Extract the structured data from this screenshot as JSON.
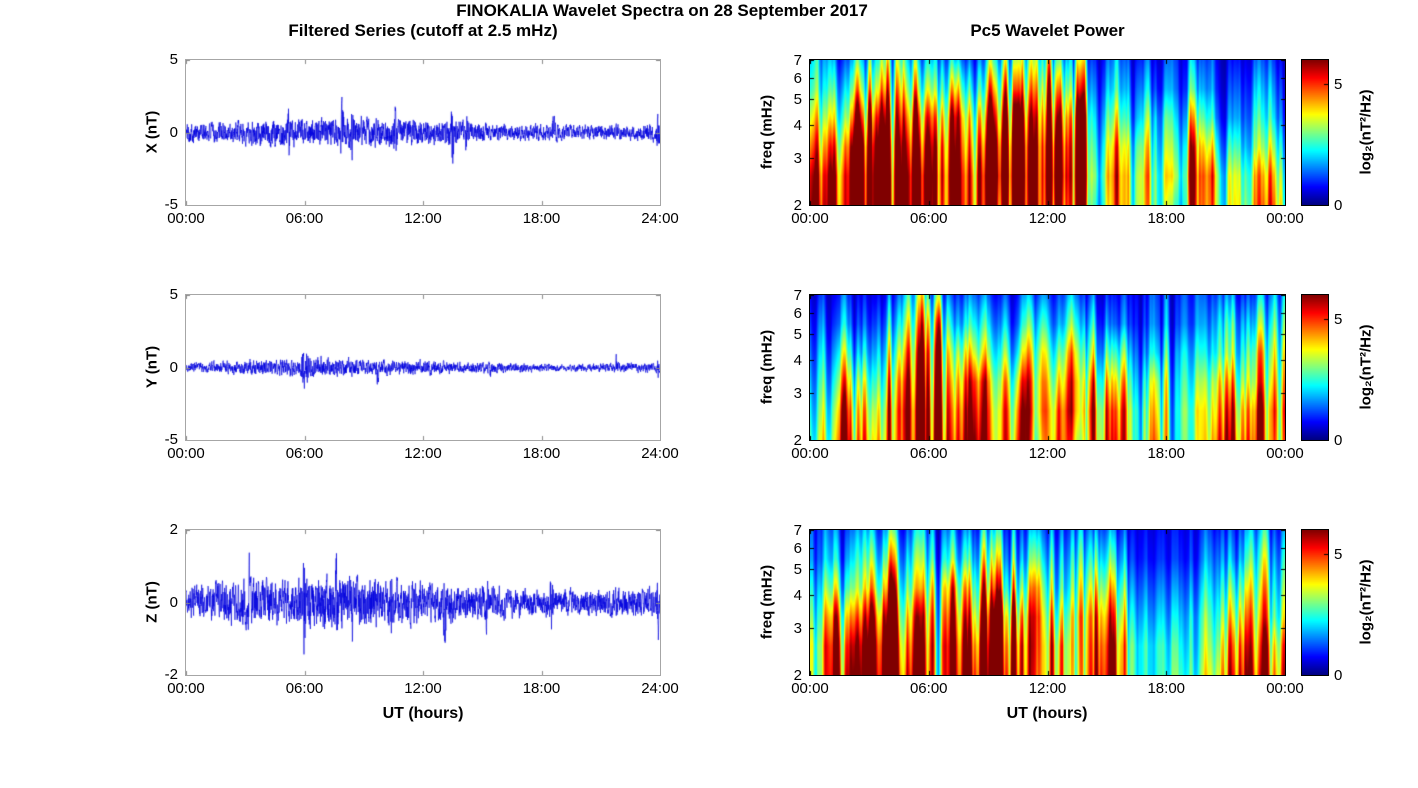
{
  "figure": {
    "title": "FINOKALIA Wavelet Spectra on 28 September 2017",
    "left_column_title": "Filtered Series (cutoff at 2.5 mHz)",
    "right_column_title": "Pc5 Wavelet Power",
    "x_axis_label": "UT (hours)",
    "background": "#ffffff",
    "trace_color": "#0000dd",
    "colormap": "jet"
  },
  "chart_data": [
    {
      "type": "line",
      "component": "X",
      "ylabel": "X (nT)",
      "ylim": [
        -5,
        5
      ],
      "yticks": [
        5,
        0,
        -5
      ],
      "ytick_labels": [
        "5",
        "0",
        "-5"
      ],
      "x_range_hours": [
        0,
        24
      ],
      "x_tick_hours": [
        0,
        6,
        12,
        18,
        24
      ],
      "x_tick_labels": [
        "00:00",
        "06:00",
        "12:00",
        "18:00",
        "24:00"
      ],
      "noise_std_per_hour": [
        0.35,
        0.38,
        0.42,
        0.45,
        0.5,
        0.5,
        0.48,
        0.55,
        0.55,
        0.5,
        0.5,
        0.48,
        0.45,
        0.5,
        0.38,
        0.3,
        0.28,
        0.3,
        0.3,
        0.27,
        0.25,
        0.25,
        0.27,
        0.3
      ],
      "bursts": [
        [
          5.2,
          0.9
        ],
        [
          7.9,
          1.6
        ],
        [
          8.4,
          1.1
        ],
        [
          10.6,
          0.9
        ],
        [
          13.5,
          1.6
        ],
        [
          14.2,
          0.8
        ],
        [
          18.6,
          0.9
        ],
        [
          23.9,
          1.2
        ]
      ],
      "seed": 101
    },
    {
      "type": "line",
      "component": "Y",
      "ylabel": "Y (nT)",
      "ylim": [
        -5,
        5
      ],
      "yticks": [
        5,
        0,
        -5
      ],
      "ytick_labels": [
        "5",
        "0",
        "-5"
      ],
      "x_range_hours": [
        0,
        24
      ],
      "x_tick_hours": [
        0,
        6,
        12,
        18,
        24
      ],
      "x_tick_labels": [
        "00:00",
        "06:00",
        "12:00",
        "18:00",
        "24:00"
      ],
      "noise_std_per_hour": [
        0.18,
        0.2,
        0.24,
        0.25,
        0.28,
        0.3,
        0.38,
        0.3,
        0.3,
        0.28,
        0.25,
        0.25,
        0.24,
        0.2,
        0.2,
        0.2,
        0.16,
        0.15,
        0.14,
        0.14,
        0.14,
        0.16,
        0.18,
        0.15
      ],
      "bursts": [
        [
          5.95,
          1.1
        ],
        [
          6.15,
          0.9
        ],
        [
          9.7,
          0.6
        ],
        [
          15.4,
          0.5
        ],
        [
          21.8,
          0.45
        ],
        [
          23.9,
          0.4
        ]
      ],
      "seed": 202
    },
    {
      "type": "line",
      "component": "Z",
      "ylabel": "Z (nT)",
      "ylim": [
        -2,
        2
      ],
      "yticks": [
        2,
        0,
        -2
      ],
      "ytick_labels": [
        "2",
        "0",
        "-2"
      ],
      "x_range_hours": [
        0,
        24
      ],
      "x_tick_hours": [
        0,
        6,
        12,
        18,
        24
      ],
      "x_tick_labels": [
        "00:00",
        "06:00",
        "12:00",
        "18:00",
        "24:00"
      ],
      "noise_std_per_hour": [
        0.22,
        0.28,
        0.32,
        0.34,
        0.3,
        0.33,
        0.36,
        0.4,
        0.36,
        0.34,
        0.3,
        0.3,
        0.26,
        0.26,
        0.22,
        0.24,
        0.2,
        0.2,
        0.2,
        0.18,
        0.18,
        0.2,
        0.2,
        0.22
      ],
      "bursts": [
        [
          3.2,
          0.5
        ],
        [
          6.0,
          0.9
        ],
        [
          7.6,
          0.65
        ],
        [
          8.4,
          0.55
        ],
        [
          10.4,
          0.5
        ],
        [
          13.1,
          0.6
        ],
        [
          15.2,
          0.45
        ],
        [
          18.5,
          0.65
        ],
        [
          23.9,
          0.5
        ]
      ],
      "seed": 303
    },
    {
      "type": "heatmap",
      "component": "X",
      "ylabel": "freq (mHz)",
      "yscale": "log",
      "freq_range_mhz": [
        2,
        7
      ],
      "yticks": [
        7,
        6,
        5,
        4,
        3,
        2
      ],
      "ytick_labels": [
        "7",
        "6",
        "5",
        "4",
        "3",
        "2"
      ],
      "x_range_hours": [
        0,
        24
      ],
      "x_tick_hours": [
        0,
        6,
        12,
        18,
        24
      ],
      "x_tick_labels": [
        "00:00",
        "06:00",
        "12:00",
        "18:00",
        "00:00"
      ],
      "clim": [
        0,
        6
      ],
      "colorbar_ticks": [
        5,
        0
      ],
      "colorbar_tick_labels": [
        "5",
        "0"
      ],
      "colorbar_label": "log₂(nT²/Hz)",
      "freq_bands_mhz": [
        2.0,
        2.6,
        3.3,
        4.2,
        5.4,
        7.0
      ],
      "power_grid_hourly": [
        [
          5.8,
          5.5,
          4.5,
          3.5,
          2.5,
          2.0
        ],
        [
          6.0,
          6.0,
          5.0,
          3.5,
          2.5,
          1.5
        ],
        [
          6.0,
          6.0,
          5.5,
          4.0,
          2.5,
          1.5
        ],
        [
          6.0,
          6.0,
          5.5,
          4.5,
          3.0,
          2.0
        ],
        [
          6.0,
          6.0,
          5.5,
          4.5,
          3.5,
          2.5
        ],
        [
          6.0,
          6.0,
          5.0,
          4.0,
          2.5,
          1.5
        ],
        [
          5.5,
          5.8,
          5.5,
          4.5,
          3.0,
          2.0
        ],
        [
          5.5,
          5.5,
          5.0,
          4.5,
          3.0,
          1.5
        ],
        [
          5.8,
          5.8,
          5.0,
          4.0,
          2.5,
          1.5
        ],
        [
          4.5,
          5.0,
          4.5,
          3.5,
          2.5,
          1.5
        ],
        [
          5.5,
          5.8,
          5.5,
          4.5,
          3.0,
          2.0
        ],
        [
          5.5,
          5.5,
          5.5,
          5.0,
          4.0,
          3.0
        ],
        [
          4.5,
          5.0,
          4.5,
          3.5,
          2.5,
          1.5
        ],
        [
          5.0,
          5.2,
          5.0,
          4.5,
          3.0,
          2.0
        ],
        [
          2.5,
          3.0,
          2.5,
          2.0,
          1.5,
          1.0
        ],
        [
          4.5,
          4.5,
          4.0,
          3.0,
          2.0,
          1.5
        ],
        [
          3.5,
          3.5,
          3.0,
          2.0,
          1.5,
          1.0
        ],
        [
          3.5,
          3.5,
          3.0,
          2.5,
          1.5,
          1.0
        ],
        [
          2.0,
          2.5,
          2.0,
          1.5,
          1.0,
          0.8
        ],
        [
          4.0,
          4.0,
          3.5,
          2.5,
          1.5,
          1.0
        ],
        [
          3.5,
          3.5,
          2.5,
          1.5,
          1.0,
          0.8
        ],
        [
          4.2,
          4.0,
          3.0,
          2.0,
          1.5,
          1.0
        ],
        [
          3.8,
          3.5,
          2.5,
          2.0,
          1.5,
          1.0
        ],
        [
          4.5,
          4.0,
          3.0,
          2.0,
          1.5,
          1.0
        ]
      ],
      "seed": 11
    },
    {
      "type": "heatmap",
      "component": "Y",
      "ylabel": "freq (mHz)",
      "yscale": "log",
      "freq_range_mhz": [
        2,
        7
      ],
      "yticks": [
        7,
        6,
        5,
        4,
        3,
        2
      ],
      "ytick_labels": [
        "7",
        "6",
        "5",
        "4",
        "3",
        "2"
      ],
      "x_range_hours": [
        0,
        24
      ],
      "x_tick_hours": [
        0,
        6,
        12,
        18,
        24
      ],
      "x_tick_labels": [
        "00:00",
        "06:00",
        "12:00",
        "18:00",
        "00:00"
      ],
      "clim": [
        0,
        6
      ],
      "colorbar_ticks": [
        5,
        0
      ],
      "colorbar_tick_labels": [
        "5",
        "0"
      ],
      "colorbar_label": "log₂(nT²/Hz)",
      "freq_bands_mhz": [
        2.0,
        2.6,
        3.3,
        4.2,
        5.4,
        7.0
      ],
      "power_grid_hourly": [
        [
          3.5,
          3.0,
          2.5,
          2.0,
          1.5,
          1.0
        ],
        [
          5.0,
          4.5,
          3.5,
          2.5,
          1.5,
          1.0
        ],
        [
          5.5,
          5.0,
          4.0,
          2.5,
          1.5,
          1.0
        ],
        [
          5.5,
          5.0,
          4.0,
          3.0,
          2.0,
          1.2
        ],
        [
          4.5,
          4.5,
          4.0,
          3.0,
          2.0,
          1.2
        ],
        [
          5.5,
          5.5,
          5.0,
          4.5,
          3.5,
          2.5
        ],
        [
          5.8,
          5.5,
          5.0,
          4.5,
          3.5,
          2.0
        ],
        [
          5.5,
          5.2,
          4.5,
          3.5,
          2.0,
          1.2
        ],
        [
          5.5,
          5.0,
          4.5,
          3.0,
          2.0,
          1.2
        ],
        [
          4.5,
          4.5,
          4.0,
          3.0,
          2.0,
          1.2
        ],
        [
          5.5,
          5.0,
          4.0,
          2.5,
          1.5,
          1.0
        ],
        [
          3.5,
          4.0,
          4.0,
          3.5,
          2.5,
          1.5
        ],
        [
          4.8,
          4.5,
          3.5,
          2.5,
          1.5,
          1.0
        ],
        [
          3.0,
          3.5,
          3.5,
          3.0,
          2.0,
          1.2
        ],
        [
          5.5,
          5.5,
          4.5,
          3.0,
          2.0,
          1.2
        ],
        [
          5.8,
          5.5,
          4.5,
          3.0,
          1.5,
          1.0
        ],
        [
          2.5,
          2.5,
          2.0,
          1.5,
          1.0,
          0.8
        ],
        [
          3.5,
          3.0,
          2.5,
          1.5,
          1.0,
          0.8
        ],
        [
          2.0,
          2.0,
          1.8,
          1.5,
          1.0,
          0.8
        ],
        [
          2.5,
          2.5,
          2.0,
          1.5,
          1.0,
          0.8
        ],
        [
          4.0,
          3.5,
          3.0,
          2.0,
          1.5,
          1.0
        ],
        [
          5.0,
          4.5,
          3.5,
          2.5,
          2.0,
          1.2
        ],
        [
          4.8,
          4.5,
          3.5,
          3.0,
          2.0,
          1.2
        ],
        [
          3.0,
          3.0,
          2.5,
          2.0,
          1.5,
          1.0
        ]
      ],
      "seed": 22
    },
    {
      "type": "heatmap",
      "component": "Z",
      "ylabel": "freq (mHz)",
      "yscale": "log",
      "freq_range_mhz": [
        2,
        7
      ],
      "yticks": [
        7,
        6,
        5,
        4,
        3,
        2
      ],
      "ytick_labels": [
        "7",
        "6",
        "5",
        "4",
        "3",
        "2"
      ],
      "x_range_hours": [
        0,
        24
      ],
      "x_tick_hours": [
        0,
        6,
        12,
        18,
        24
      ],
      "x_tick_labels": [
        "00:00",
        "06:00",
        "12:00",
        "18:00",
        "00:00"
      ],
      "clim": [
        0,
        6
      ],
      "colorbar_ticks": [
        5,
        0
      ],
      "colorbar_tick_labels": [
        "5",
        "0"
      ],
      "colorbar_label": "log₂(nT²/Hz)",
      "freq_bands_mhz": [
        2.0,
        2.6,
        3.3,
        4.2,
        5.4,
        7.0
      ],
      "power_grid_hourly": [
        [
          2.5,
          2.5,
          2.0,
          1.5,
          1.0,
          0.8
        ],
        [
          5.5,
          5.0,
          4.0,
          2.5,
          1.5,
          1.0
        ],
        [
          4.5,
          4.0,
          3.0,
          2.0,
          1.5,
          1.0
        ],
        [
          5.8,
          5.5,
          4.5,
          3.0,
          2.0,
          1.2
        ],
        [
          5.5,
          5.0,
          4.0,
          3.0,
          2.0,
          1.2
        ],
        [
          4.0,
          3.5,
          3.0,
          2.0,
          1.5,
          1.0
        ],
        [
          3.5,
          3.5,
          3.0,
          2.5,
          1.5,
          1.0
        ],
        [
          5.5,
          5.2,
          4.5,
          3.5,
          2.0,
          1.2
        ],
        [
          5.5,
          5.0,
          4.0,
          3.0,
          2.0,
          1.2
        ],
        [
          5.5,
          5.0,
          4.5,
          3.0,
          2.0,
          1.2
        ],
        [
          5.2,
          5.0,
          4.0,
          2.5,
          1.5,
          1.0
        ],
        [
          3.5,
          3.5,
          3.5,
          3.0,
          2.0,
          1.2
        ],
        [
          4.2,
          4.0,
          3.0,
          2.0,
          1.5,
          1.0
        ],
        [
          2.5,
          2.5,
          2.5,
          2.0,
          1.5,
          1.0
        ],
        [
          4.8,
          4.5,
          4.0,
          3.0,
          2.0,
          1.2
        ],
        [
          5.0,
          4.8,
          4.0,
          3.0,
          2.0,
          1.2
        ],
        [
          2.5,
          2.5,
          2.0,
          1.5,
          1.0,
          0.8
        ],
        [
          2.5,
          2.5,
          2.0,
          1.5,
          1.0,
          0.8
        ],
        [
          2.8,
          2.5,
          2.0,
          1.5,
          1.0,
          0.8
        ],
        [
          2.5,
          2.2,
          2.0,
          1.5,
          1.0,
          0.8
        ],
        [
          3.5,
          3.0,
          2.5,
          2.0,
          1.5,
          1.0
        ],
        [
          5.0,
          4.5,
          3.5,
          2.5,
          1.5,
          1.0
        ],
        [
          3.5,
          3.0,
          2.5,
          2.0,
          1.5,
          1.0
        ],
        [
          4.0,
          3.5,
          2.5,
          2.0,
          1.5,
          1.0
        ]
      ],
      "seed": 33
    }
  ]
}
